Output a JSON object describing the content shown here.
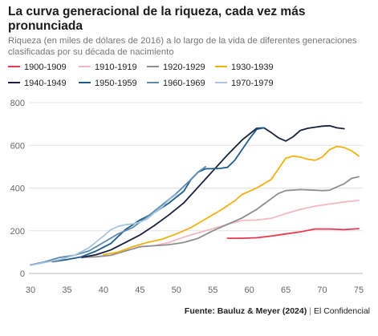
{
  "title": "La curva generacional de la riqueza, cada vez más pronunciada",
  "subtitle": "Riqueza (en miles de dólares de 2016) a lo largo de la vida de diferentes generaciones clasificadas por su década de nacimiento",
  "footer": {
    "source": "Fuente: Bauluz & Meyer (2024)",
    "separator": "|",
    "outlet": "El Confidencial"
  },
  "chart_data": {
    "type": "line",
    "xlabel": "",
    "ylabel": "",
    "xlim": [
      30,
      75
    ],
    "ylim": [
      0,
      800
    ],
    "xticks": [
      30,
      35,
      40,
      45,
      50,
      55,
      60,
      65,
      70,
      75
    ],
    "yticks": [
      0,
      200,
      400,
      600,
      800
    ],
    "grid": true,
    "legend_position": "top",
    "series": [
      {
        "name": "1900-1909",
        "color": "#e8384f",
        "points": [
          [
            57,
            165
          ],
          [
            59,
            165
          ],
          [
            61,
            167
          ],
          [
            63,
            175
          ],
          [
            65,
            185
          ],
          [
            67,
            195
          ],
          [
            69,
            208
          ],
          [
            71,
            208
          ],
          [
            73,
            205
          ],
          [
            75,
            210
          ]
        ]
      },
      {
        "name": "1910-1919",
        "color": "#f4b8c5",
        "points": [
          [
            47,
            130
          ],
          [
            49,
            145
          ],
          [
            51,
            170
          ],
          [
            53,
            190
          ],
          [
            55,
            210
          ],
          [
            57,
            230
          ],
          [
            59,
            248
          ],
          [
            61,
            250
          ],
          [
            63,
            258
          ],
          [
            65,
            280
          ],
          [
            67,
            300
          ],
          [
            69,
            315
          ],
          [
            71,
            325
          ],
          [
            73,
            335
          ],
          [
            75,
            342
          ]
        ]
      },
      {
        "name": "1920-1929",
        "color": "#8e8e8e",
        "points": [
          [
            37,
            75
          ],
          [
            39,
            78
          ],
          [
            41,
            85
          ],
          [
            43,
            105
          ],
          [
            45,
            125
          ],
          [
            47,
            130
          ],
          [
            49,
            135
          ],
          [
            51,
            145
          ],
          [
            53,
            165
          ],
          [
            55,
            200
          ],
          [
            57,
            230
          ],
          [
            59,
            260
          ],
          [
            61,
            300
          ],
          [
            63,
            350
          ],
          [
            64,
            375
          ],
          [
            65,
            388
          ],
          [
            67,
            393
          ],
          [
            69,
            390
          ],
          [
            70,
            388
          ],
          [
            71,
            390
          ],
          [
            73,
            420
          ],
          [
            74,
            445
          ],
          [
            75,
            453
          ]
        ]
      },
      {
        "name": "1930-1939",
        "color": "#f2b112",
        "points": [
          [
            40,
            88
          ],
          [
            42,
            100
          ],
          [
            44,
            125
          ],
          [
            46,
            145
          ],
          [
            48,
            160
          ],
          [
            50,
            185
          ],
          [
            52,
            215
          ],
          [
            54,
            255
          ],
          [
            56,
            295
          ],
          [
            58,
            340
          ],
          [
            59,
            370
          ],
          [
            61,
            400
          ],
          [
            62,
            420
          ],
          [
            63,
            440
          ],
          [
            64,
            490
          ],
          [
            65,
            540
          ],
          [
            66,
            550
          ],
          [
            67,
            545
          ],
          [
            68,
            535
          ],
          [
            69,
            530
          ],
          [
            70,
            545
          ],
          [
            71,
            580
          ],
          [
            72,
            595
          ],
          [
            73,
            590
          ],
          [
            74,
            575
          ],
          [
            75,
            550
          ]
        ]
      },
      {
        "name": "1940-1949",
        "color": "#16213e",
        "points": [
          [
            37,
            75
          ],
          [
            39,
            88
          ],
          [
            41,
            110
          ],
          [
            43,
            145
          ],
          [
            45,
            180
          ],
          [
            47,
            225
          ],
          [
            49,
            275
          ],
          [
            51,
            330
          ],
          [
            53,
            405
          ],
          [
            55,
            480
          ],
          [
            57,
            555
          ],
          [
            59,
            625
          ],
          [
            61,
            680
          ],
          [
            62,
            682
          ],
          [
            63,
            660
          ],
          [
            64,
            635
          ],
          [
            65,
            620
          ],
          [
            66,
            640
          ],
          [
            67,
            670
          ],
          [
            68,
            680
          ],
          [
            69,
            685
          ],
          [
            70,
            690
          ],
          [
            71,
            692
          ],
          [
            72,
            682
          ],
          [
            73,
            678
          ]
        ]
      },
      {
        "name": "1950-1959",
        "color": "#1f5c8b",
        "points": [
          [
            33,
            55
          ],
          [
            35,
            65
          ],
          [
            37,
            78
          ],
          [
            39,
            105
          ],
          [
            41,
            140
          ],
          [
            43,
            205
          ],
          [
            45,
            250
          ],
          [
            47,
            285
          ],
          [
            49,
            330
          ],
          [
            51,
            385
          ],
          [
            52,
            440
          ],
          [
            53,
            475
          ],
          [
            54,
            490
          ],
          [
            56,
            492
          ],
          [
            57,
            497
          ],
          [
            58,
            530
          ],
          [
            59,
            580
          ],
          [
            60,
            630
          ],
          [
            61,
            675
          ],
          [
            62,
            682
          ]
        ]
      },
      {
        "name": "1960-1969",
        "color": "#5d8cae",
        "points": [
          [
            30,
            40
          ],
          [
            32,
            55
          ],
          [
            34,
            75
          ],
          [
            36,
            85
          ],
          [
            38,
            105
          ],
          [
            40,
            145
          ],
          [
            42,
            185
          ],
          [
            44,
            215
          ],
          [
            46,
            265
          ],
          [
            48,
            320
          ],
          [
            50,
            375
          ],
          [
            52,
            440
          ],
          [
            53,
            475
          ],
          [
            54,
            500
          ]
        ]
      },
      {
        "name": "1970-1979",
        "color": "#a9c4dd",
        "points": [
          [
            30,
            38
          ],
          [
            32,
            52
          ],
          [
            34,
            65
          ],
          [
            36,
            85
          ],
          [
            38,
            120
          ],
          [
            40,
            175
          ],
          [
            41,
            205
          ],
          [
            42,
            220
          ],
          [
            43,
            228
          ],
          [
            44,
            232
          ],
          [
            45,
            240
          ],
          [
            46,
            255
          ],
          [
            47,
            285
          ],
          [
            48,
            310
          ],
          [
            49,
            345
          ],
          [
            50,
            370
          ]
        ]
      }
    ]
  }
}
